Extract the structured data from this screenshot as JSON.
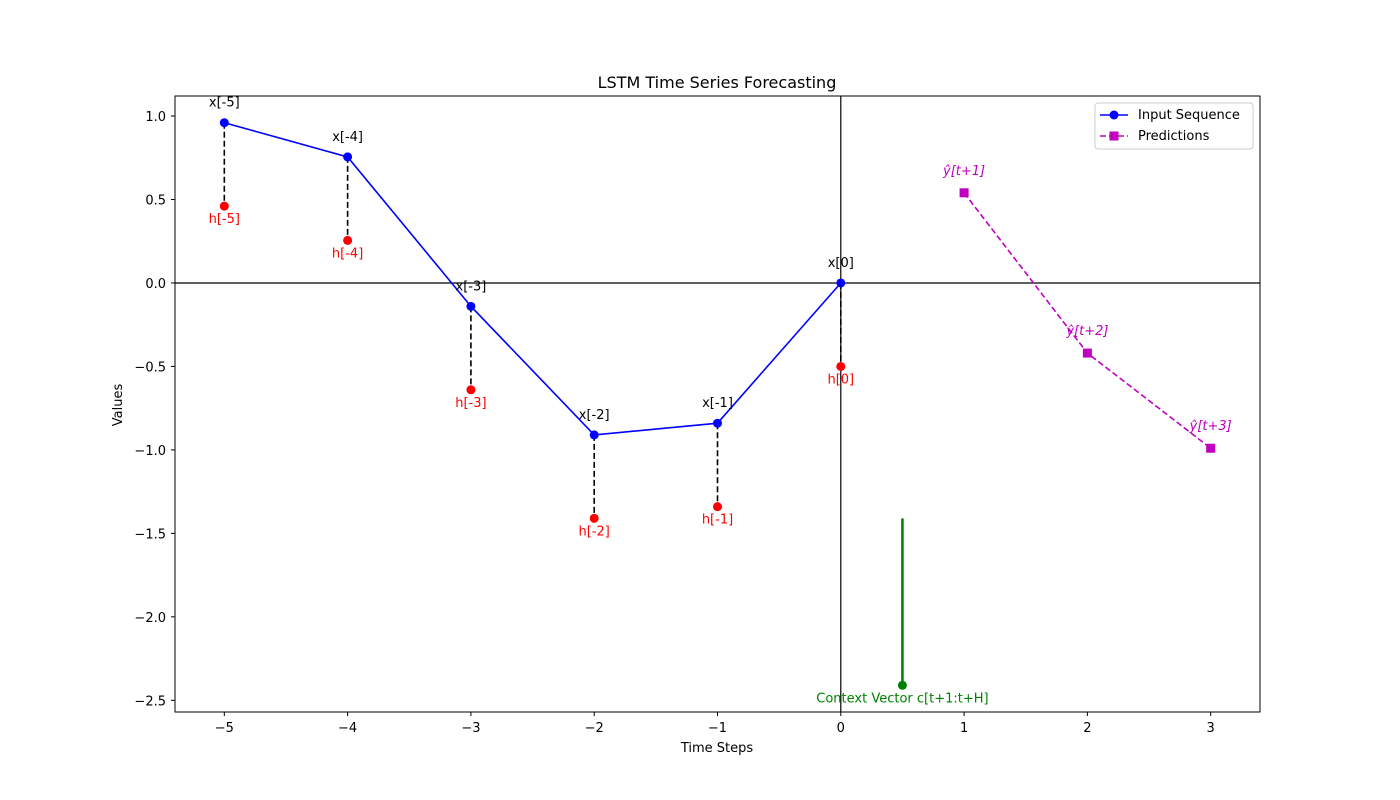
{
  "chart_data": {
    "type": "line",
    "title": "LSTM Time Series Forecasting",
    "xlabel": "Time Steps",
    "ylabel": "Values",
    "xlim": [
      -5.4,
      3.4
    ],
    "ylim": [
      -2.57,
      1.12
    ],
    "xticks": [
      -5,
      -4,
      -3,
      -2,
      -1,
      0,
      1,
      2,
      3
    ],
    "xtick_labels": [
      "−5",
      "−4",
      "−3",
      "−2",
      "−1",
      "0",
      "1",
      "2",
      "3"
    ],
    "yticks": [
      1.0,
      0.5,
      0.0,
      -0.5,
      -1.0,
      -1.5,
      -2.0,
      -2.5
    ],
    "ytick_labels": [
      "1.0",
      "0.5",
      "0.0",
      "−0.5",
      "−1.0",
      "−1.5",
      "−2.0",
      "−2.5"
    ],
    "reference_lines": {
      "x": 0,
      "y": 0
    },
    "series": [
      {
        "name": "Input Sequence",
        "color": "#0000ff",
        "marker": "circle",
        "linestyle": "solid",
        "x": [
          -5,
          -4,
          -3,
          -2,
          -1,
          0
        ],
        "y": [
          0.96,
          0.755,
          -0.14,
          -0.91,
          -0.84,
          0.0
        ],
        "labels": [
          "x[-5]",
          "x[-4]",
          "x[-3]",
          "x[-2]",
          "x[-1]",
          "x[0]"
        ]
      },
      {
        "name": "Predictions",
        "color": "#bf00bf",
        "marker": "square",
        "linestyle": "dashed",
        "x": [
          1,
          2,
          3
        ],
        "y": [
          0.54,
          -0.42,
          -0.99
        ],
        "labels": [
          "ŷ[t+1]",
          "ŷ[t+2]",
          "ŷ[t+3]"
        ]
      }
    ],
    "hidden_states": {
      "color": "#ff0000",
      "connector_color": "#000000",
      "connector_style": "dashed",
      "x": [
        -5,
        -4,
        -3,
        -2,
        -1,
        0
      ],
      "y": [
        0.46,
        0.255,
        -0.64,
        -1.41,
        -1.34,
        -0.5
      ],
      "labels": [
        "h[-5]",
        "h[-4]",
        "h[-3]",
        "h[-2]",
        "h[-1]",
        "h[0]"
      ]
    },
    "context_vector": {
      "color": "#008000",
      "label": "Context Vector c[t+1:t+H]",
      "x": 0.5,
      "y_bottom": -2.41,
      "y_top": -1.41
    },
    "legend": {
      "position": "top-right",
      "entries": [
        "Input Sequence",
        "Predictions"
      ]
    }
  }
}
